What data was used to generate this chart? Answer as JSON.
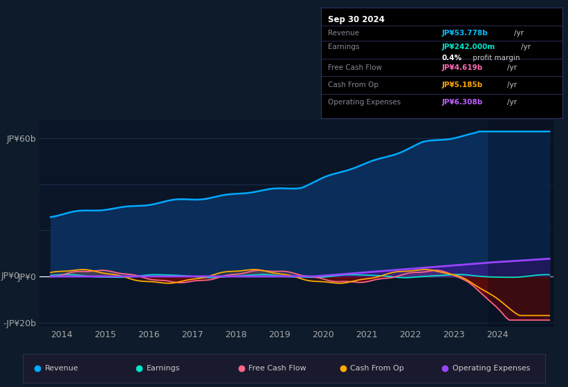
{
  "bg_color": "#0d1b2a",
  "chart_area_color": "#0a1628",
  "grid_color": "#1e3050",
  "title_box": {
    "date": "Sep 30 2024",
    "rows": [
      {
        "label": "Revenue",
        "value": "JP¥53.778b",
        "unit": "/yr",
        "value_color": "#00bfff"
      },
      {
        "label": "Earnings",
        "value": "JP¥242.000m",
        "unit": "/yr",
        "value_color": "#00e5cc"
      },
      {
        "label": "",
        "value": "0.4%",
        "unit": " profit margin",
        "value_color": "#ffffff"
      },
      {
        "label": "Free Cash Flow",
        "value": "JP¥4.619b",
        "unit": "/yr",
        "value_color": "#ff69b4"
      },
      {
        "label": "Cash From Op",
        "value": "JP¥5.185b",
        "unit": "/yr",
        "value_color": "#ffa500"
      },
      {
        "label": "Operating Expenses",
        "value": "JP¥6.308b",
        "unit": "/yr",
        "value_color": "#bf5fff"
      }
    ]
  },
  "ylim": [
    -22,
    68
  ],
  "yticks": [
    -20,
    0,
    20,
    40,
    60
  ],
  "ytick_labels": [
    "-JP¥20b",
    "JP¥0",
    "",
    "",
    "JP¥60b"
  ],
  "xlim_start": 2013.5,
  "xlim_end": 2025.3,
  "xtick_years": [
    2014,
    2015,
    2016,
    2017,
    2018,
    2019,
    2020,
    2021,
    2022,
    2023,
    2024
  ],
  "revenue_color": "#00aaff",
  "revenue_fill_color": "#0a3060",
  "earnings_color": "#00e5cc",
  "fcf_color": "#ff6688",
  "cashfromop_color": "#ffaa00",
  "opex_color": "#9944ff",
  "legend_items": [
    {
      "label": "Revenue",
      "color": "#00aaff"
    },
    {
      "label": "Earnings",
      "color": "#00e5cc"
    },
    {
      "label": "Free Cash Flow",
      "color": "#ff6688"
    },
    {
      "label": "Cash From Op",
      "color": "#ffaa00"
    },
    {
      "label": "Operating Expenses",
      "color": "#9944ff"
    }
  ]
}
